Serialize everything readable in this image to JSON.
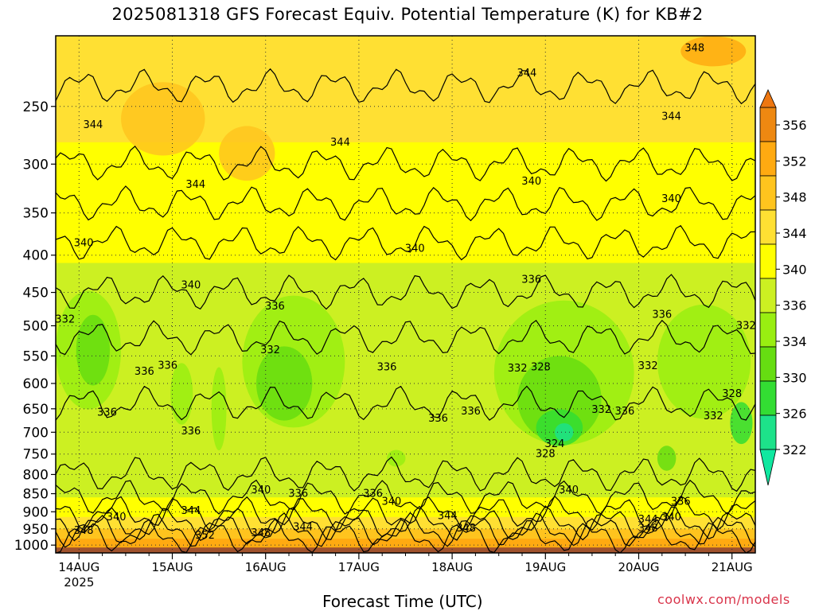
{
  "title": "2025081318 GFS Forecast Equiv. Potential Temperature (K) for KB#2",
  "credit": "coolwx.com/models",
  "chart_data": {
    "type": "heatmap",
    "title": "2025081318 GFS Forecast Equiv. Potential Temperature (K) for KB#2",
    "xlabel": "Forecast Time (UTC)",
    "ylabel": "",
    "units": "K",
    "x_ticks": [
      "14AUG",
      "15AUG",
      "16AUG",
      "17AUG",
      "18AUG",
      "19AUG",
      "20AUG",
      "21AUG"
    ],
    "x_year": "2025",
    "xlim_days": [
      13.75,
      21.25
    ],
    "y_ticks": [
      250,
      300,
      350,
      400,
      450,
      500,
      550,
      600,
      650,
      700,
      750,
      800,
      850,
      900,
      950,
      1000
    ],
    "ylim_hpa": [
      200,
      1025
    ],
    "y_scale": "log-pressure",
    "grid": "dotted",
    "colorbar": {
      "ticks": [
        322,
        326,
        330,
        334,
        336,
        340,
        344,
        348,
        352,
        356
      ],
      "colors": [
        "#1de28a",
        "#33dd33",
        "#66dd11",
        "#99ee11",
        "#ccf022",
        "#ffff00",
        "#ffe033",
        "#ffc41e",
        "#ffaa11",
        "#ee8811"
      ]
    },
    "contour_labels": [
      {
        "day": 14.15,
        "p": 265,
        "value": "344"
      },
      {
        "day": 15.25,
        "p": 320,
        "value": "344"
      },
      {
        "day": 16.8,
        "p": 280,
        "value": "344"
      },
      {
        "day": 18.8,
        "p": 225,
        "value": "344"
      },
      {
        "day": 20.35,
        "p": 258,
        "value": "344"
      },
      {
        "day": 20.6,
        "p": 208,
        "value": "348"
      },
      {
        "day": 14.05,
        "p": 385,
        "value": "340"
      },
      {
        "day": 15.2,
        "p": 440,
        "value": "340"
      },
      {
        "day": 17.6,
        "p": 392,
        "value": "340"
      },
      {
        "day": 18.85,
        "p": 317,
        "value": "340"
      },
      {
        "day": 20.35,
        "p": 335,
        "value": "340"
      },
      {
        "day": 18.85,
        "p": 432,
        "value": "336"
      },
      {
        "day": 20.25,
        "p": 483,
        "value": "336"
      },
      {
        "day": 16.1,
        "p": 470,
        "value": "336"
      },
      {
        "day": 13.85,
        "p": 490,
        "value": "332"
      },
      {
        "day": 21.15,
        "p": 500,
        "value": "332"
      },
      {
        "day": 16.05,
        "p": 540,
        "value": "332"
      },
      {
        "day": 14.7,
        "p": 578,
        "value": "336"
      },
      {
        "day": 14.95,
        "p": 567,
        "value": "336"
      },
      {
        "day": 17.3,
        "p": 570,
        "value": "336"
      },
      {
        "day": 18.7,
        "p": 572,
        "value": "332"
      },
      {
        "day": 18.95,
        "p": 570,
        "value": "328"
      },
      {
        "day": 20.1,
        "p": 568,
        "value": "332"
      },
      {
        "day": 21.0,
        "p": 620,
        "value": "328"
      },
      {
        "day": 14.3,
        "p": 658,
        "value": "336"
      },
      {
        "day": 18.2,
        "p": 655,
        "value": "336"
      },
      {
        "day": 17.85,
        "p": 670,
        "value": "336"
      },
      {
        "day": 19.6,
        "p": 652,
        "value": "332"
      },
      {
        "day": 19.85,
        "p": 655,
        "value": "336"
      },
      {
        "day": 20.8,
        "p": 665,
        "value": "332"
      },
      {
        "day": 15.2,
        "p": 698,
        "value": "336"
      },
      {
        "day": 19.1,
        "p": 726,
        "value": "324"
      },
      {
        "day": 19.0,
        "p": 750,
        "value": "328"
      },
      {
        "day": 15.95,
        "p": 840,
        "value": "340"
      },
      {
        "day": 16.35,
        "p": 850,
        "value": "336"
      },
      {
        "day": 17.15,
        "p": 850,
        "value": "336"
      },
      {
        "day": 17.35,
        "p": 872,
        "value": "340"
      },
      {
        "day": 19.25,
        "p": 840,
        "value": "340"
      },
      {
        "day": 20.45,
        "p": 872,
        "value": "336"
      },
      {
        "day": 14.4,
        "p": 915,
        "value": "340"
      },
      {
        "day": 15.2,
        "p": 897,
        "value": "344"
      },
      {
        "day": 17.95,
        "p": 912,
        "value": "344"
      },
      {
        "day": 20.1,
        "p": 922,
        "value": "344"
      },
      {
        "day": 20.35,
        "p": 915,
        "value": "340"
      },
      {
        "day": 14.05,
        "p": 955,
        "value": "348"
      },
      {
        "day": 16.4,
        "p": 945,
        "value": "344"
      },
      {
        "day": 15.35,
        "p": 970,
        "value": "352"
      },
      {
        "day": 15.95,
        "p": 962,
        "value": "348"
      },
      {
        "day": 18.15,
        "p": 948,
        "value": "348"
      },
      {
        "day": 20.1,
        "p": 948,
        "value": "348"
      }
    ]
  }
}
